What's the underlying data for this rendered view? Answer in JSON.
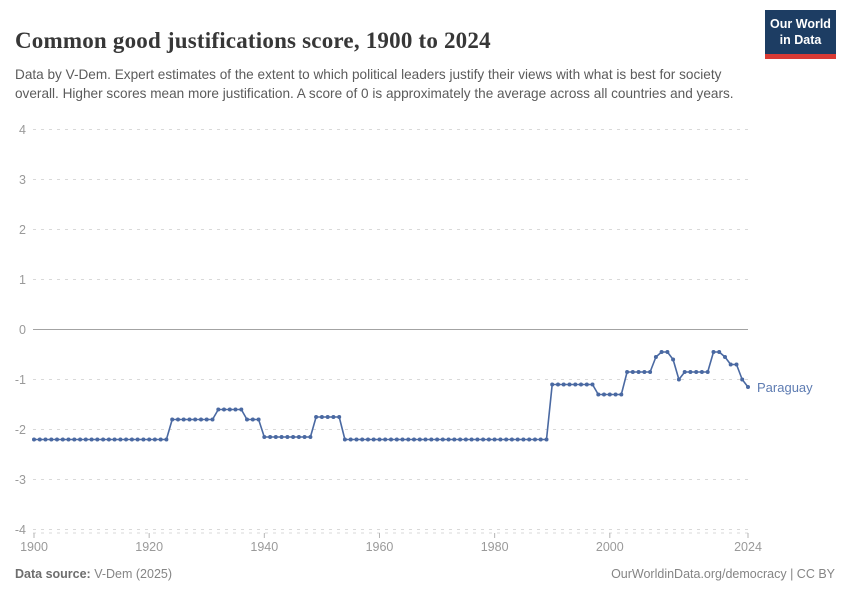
{
  "header": {
    "title": "Common good justifications score, 1900 to 2024",
    "subtitle": "Data by V-Dem. Expert estimates of the extent to which political leaders justify their views with what is best for society overall. Higher scores mean more justification. A score of 0 is approximately the average across all countries and years.",
    "logo_line1": "Our World",
    "logo_line2": "in Data"
  },
  "footer": {
    "source_label": "Data source:",
    "source_value": " V-Dem (2025)",
    "credit": "OurWorldinData.org/democracy | CC BY"
  },
  "chart_data": {
    "type": "line",
    "title": "Common good justifications score, 1900 to 2024",
    "entity_label": "Paraguay",
    "xlabel": "",
    "ylabel": "",
    "x_start": 1900,
    "x_end": 2024,
    "x_step": 1,
    "ylim": [
      -4,
      4
    ],
    "yticks": [
      4,
      3,
      2,
      1,
      0,
      -1,
      -2,
      -3,
      -4
    ],
    "xticks": [
      1900,
      1920,
      1940,
      1960,
      1980,
      2000,
      2024
    ],
    "grid": true,
    "legend_position": "end-of-line-label",
    "series": [
      {
        "name": "Paraguay",
        "values": [
          -2.2,
          -2.2,
          -2.2,
          -2.2,
          -2.2,
          -2.2,
          -2.2,
          -2.2,
          -2.2,
          -2.2,
          -2.2,
          -2.2,
          -2.2,
          -2.2,
          -2.2,
          -2.2,
          -2.2,
          -2.2,
          -2.2,
          -2.2,
          -2.2,
          -2.2,
          -2.2,
          -2.2,
          -1.8,
          -1.8,
          -1.8,
          -1.8,
          -1.8,
          -1.8,
          -1.8,
          -1.8,
          -1.6,
          -1.6,
          -1.6,
          -1.6,
          -1.6,
          -1.8,
          -1.8,
          -1.8,
          -2.15,
          -2.15,
          -2.15,
          -2.15,
          -2.15,
          -2.15,
          -2.15,
          -2.15,
          -2.15,
          -1.75,
          -1.75,
          -1.75,
          -1.75,
          -1.75,
          -2.2,
          -2.2,
          -2.2,
          -2.2,
          -2.2,
          -2.2,
          -2.2,
          -2.2,
          -2.2,
          -2.2,
          -2.2,
          -2.2,
          -2.2,
          -2.2,
          -2.2,
          -2.2,
          -2.2,
          -2.2,
          -2.2,
          -2.2,
          -2.2,
          -2.2,
          -2.2,
          -2.2,
          -2.2,
          -2.2,
          -2.2,
          -2.2,
          -2.2,
          -2.2,
          -2.2,
          -2.2,
          -2.2,
          -2.2,
          -2.2,
          -2.2,
          -1.1,
          -1.1,
          -1.1,
          -1.1,
          -1.1,
          -1.1,
          -1.1,
          -1.1,
          -1.3,
          -1.3,
          -1.3,
          -1.3,
          -1.3,
          -0.85,
          -0.85,
          -0.85,
          -0.85,
          -0.85,
          -0.55,
          -0.45,
          -0.45,
          -0.6,
          -1,
          -0.85,
          -0.85,
          -0.85,
          -0.85,
          -0.85,
          -0.45,
          -0.45,
          -0.55,
          -0.7,
          -0.7,
          -1,
          -1.15
        ]
      }
    ],
    "colors": {
      "series": "#4A69A2",
      "entity_label": "#5E7CB2",
      "grid": "#d9d9d9",
      "zero_line": "#a3a3a3",
      "axis_text": "#9a9a9a",
      "tick": "#b4b4b4"
    }
  }
}
